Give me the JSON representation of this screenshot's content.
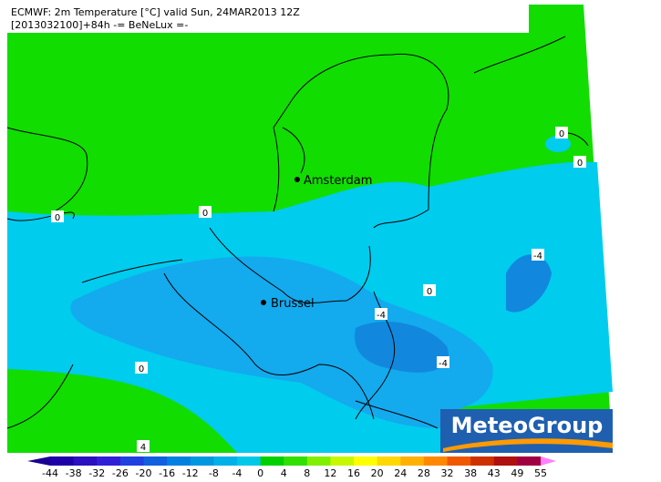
{
  "header": {
    "line1": "ECMWF: 2m Temperature [°C] valid Sun, 24MAR2013 12Z",
    "line2": "[2013032100]+84h -= BeNeLux =-"
  },
  "cities": [
    "Amsterdam",
    "Brussel"
  ],
  "contour_labels": [
    "0",
    "0",
    "0",
    "0",
    "-4",
    "0",
    "-4",
    "-4",
    "0",
    "4"
  ],
  "logo": "MeteoGroup",
  "legend": {
    "ticks": [
      -44,
      -38,
      -32,
      -26,
      -20,
      -16,
      -12,
      -8,
      -4,
      0,
      4,
      8,
      12,
      16,
      20,
      24,
      28,
      32,
      38,
      43,
      49,
      55
    ],
    "colors": [
      "#1a0090",
      "#1e00a8",
      "#2a10c0",
      "#3020d8",
      "#2040e0",
      "#1060e0",
      "#0080e0",
      "#0098e0",
      "#00b0e8",
      "#00c8e8",
      "#00d000",
      "#30e000",
      "#80f000",
      "#c8f800",
      "#ffff00",
      "#ffd800",
      "#ffb000",
      "#ff8800",
      "#f05800",
      "#d03000",
      "#b01010",
      "#a00040",
      "#ff80ff"
    ]
  }
}
